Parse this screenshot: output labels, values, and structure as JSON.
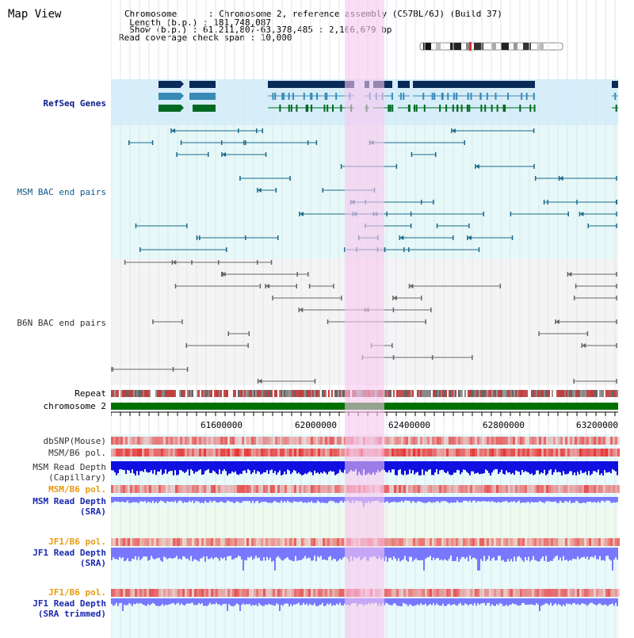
{
  "title": "Map View",
  "header": {
    "lines": [
      "Chromosome      : Chromosome 2, reference assembly (C57BL/6J) (Build 37)",
      "  Length (b.p.) : 181,748,087",
      "  Show (b.p.) : 61,211,807-63,378,485 : 2,166,679 bp",
      "Read coverage check span : 10,000"
    ]
  },
  "tracks": {
    "refseq": "RefSeq Genes",
    "msm_bac": "MSM BAC end pairs",
    "b6n_bac": "B6N BAC end pairs",
    "repeat": "Repeat",
    "chromosome": "chromosome 2",
    "dbsnp": "dbSNP(Mouse)",
    "msm_b6_pol": "MSM/B6 pol.",
    "msm_depth_cap_1": "MSM Read Depth",
    "msm_depth_cap_2": "(Capillary)",
    "msm_b6_pol2": "MSM/B6 pol.",
    "msm_depth_sra_1": "MSM Read Depth",
    "msm_depth_sra_2": "(SRA)",
    "jf1_b6_pol": "JF1/B6 pol.",
    "jf1_depth_sra_1": "JF1 Read Depth",
    "jf1_depth_sra_2": "(SRA)",
    "jf1_b6_pol2": "JF1/B6 pol.",
    "jf1_trim_1": "JF1 Read Depth",
    "jf1_trim_2": "(SRA trimmed)"
  },
  "axis": {
    "ticks": [
      "61600000",
      "62000000",
      "62400000",
      "62800000",
      "63200000"
    ]
  },
  "colors": {
    "refseq_bg": "#d6eef9",
    "msm_bg": "#e6f8f8",
    "b6n_bg": "#f4f4f4",
    "chromosome": "#007000",
    "highlight": "#f8c6ee",
    "depth_blue": "#1010e0",
    "depth_light": "#7878ff"
  }
}
